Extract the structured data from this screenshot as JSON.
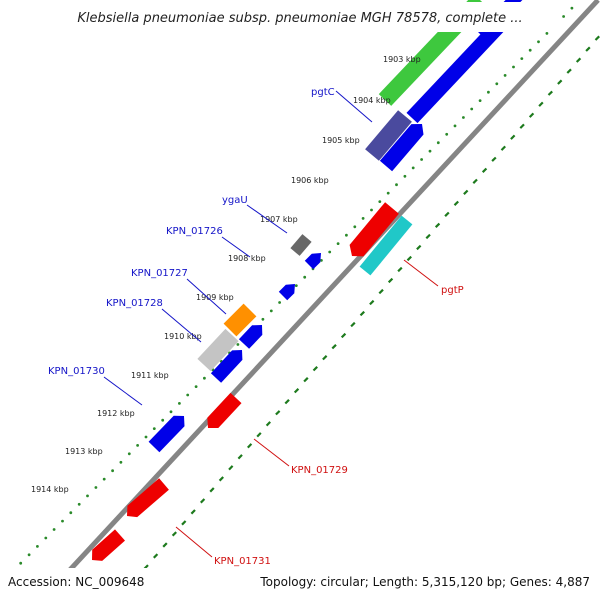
{
  "title": "Klebsiella pneumoniae subsp. pneumoniae MGH 78578, complete ...",
  "footer": {
    "accession": "Accession: NC_009648",
    "summary": "Topology: circular; Length: 5,315,120 bp; Genes: 4,887"
  },
  "colors": {
    "dna": "#858585",
    "gc_dots": "#2a8a2a",
    "ticks": "#1d7a1d",
    "forward_label": "#1414c8",
    "reverse_label": "#d01010",
    "forward": "#0000e8",
    "reverse": "#ee0000",
    "green": "#3ec83e",
    "indigo": "#4a4a9e",
    "grey": "#686868",
    "orange": "#ff9000",
    "light_grey": "#c4c4c4",
    "cyan": "#20c8c8"
  },
  "kbp_labels": [
    "1903 kbp",
    "1904 kbp",
    "1905 kbp",
    "1906 kbp",
    "1907 kbp",
    "1908 kbp",
    "1909 kbp",
    "1910 kbp",
    "1911 kbp",
    "1912 kbp",
    "1913 kbp",
    "1914 kbp"
  ],
  "forward_labels": [
    {
      "id": "pgtC",
      "text": "pgtC"
    },
    {
      "id": "ygaU",
      "text": "ygaU"
    },
    {
      "id": "KPN_01726",
      "text": "KPN_01726"
    },
    {
      "id": "KPN_01727",
      "text": "KPN_01727"
    },
    {
      "id": "KPN_01728",
      "text": "KPN_01728"
    },
    {
      "id": "KPN_01730",
      "text": "KPN_01730"
    }
  ],
  "reverse_labels": [
    {
      "id": "pgtP",
      "text": "pgtP"
    },
    {
      "id": "KPN_01729",
      "text": "KPN_01729"
    },
    {
      "id": "KPN_01731",
      "text": "KPN_01731"
    }
  ],
  "features": [
    {
      "name": "green-feature",
      "color": "green"
    },
    {
      "name": "indigo-feature",
      "color": "indigo"
    },
    {
      "name": "grey-feature",
      "color": "grey"
    },
    {
      "name": "orange-feature",
      "color": "orange"
    },
    {
      "name": "light-grey-feature",
      "color": "light_grey"
    },
    {
      "name": "cyan-feature",
      "color": "cyan"
    },
    {
      "name": "forward-gene",
      "color": "forward"
    },
    {
      "name": "reverse-gene",
      "color": "reverse"
    }
  ]
}
